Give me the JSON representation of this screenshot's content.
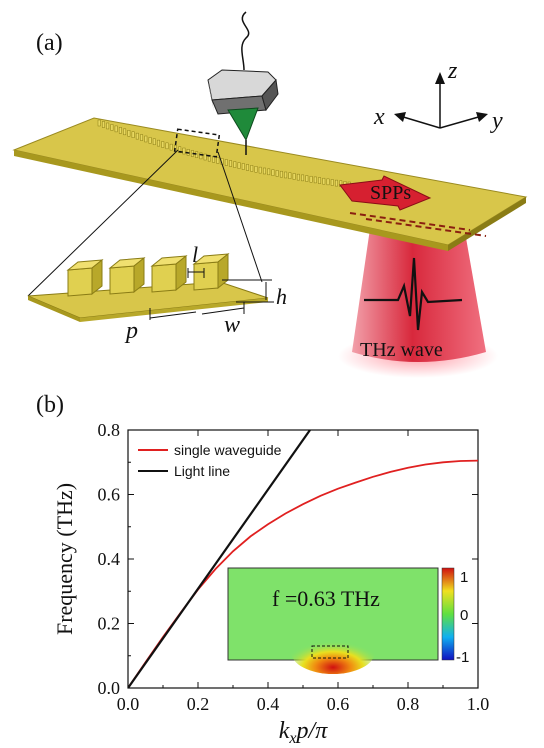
{
  "panel_a": {
    "label": "(a)",
    "axes": {
      "x": "x",
      "y": "y",
      "z": "z"
    },
    "dimensions": {
      "l": "l",
      "h": "h",
      "p": "p",
      "w": "w"
    },
    "spp_label": "SPPs",
    "thz_label": "THz wave",
    "colors": {
      "metal": "#d8c64a",
      "beam": "#d8283c",
      "tip": "#1f8a3a"
    }
  },
  "panel_b": {
    "label": "(b)",
    "inset_text": "f =0.63 THz",
    "colorbar_ticks": [
      "1",
      "0",
      "-1"
    ],
    "inset_background": "#7fe26a"
  },
  "chart_data": {
    "type": "line",
    "xlabel": "kxp/π",
    "ylabel": "Frequency (THz)",
    "xlim": [
      0.0,
      1.0
    ],
    "ylim": [
      0.0,
      0.8
    ],
    "x_ticks": [
      "0.0",
      "0.2",
      "0.4",
      "0.6",
      "0.8",
      "1.0"
    ],
    "y_ticks": [
      "0.0",
      "0.2",
      "0.4",
      "0.6",
      "0.8"
    ],
    "legend_position": "top-left",
    "series": [
      {
        "name": "single waveguide",
        "color": "#e02020",
        "x": [
          0.0,
          0.05,
          0.1,
          0.15,
          0.2,
          0.25,
          0.3,
          0.35,
          0.4,
          0.45,
          0.5,
          0.55,
          0.6,
          0.65,
          0.7,
          0.75,
          0.8,
          0.85,
          0.9,
          0.95,
          1.0
        ],
        "y": [
          0.0,
          0.08,
          0.158,
          0.233,
          0.305,
          0.369,
          0.424,
          0.47,
          0.508,
          0.541,
          0.57,
          0.596,
          0.618,
          0.637,
          0.655,
          0.67,
          0.683,
          0.693,
          0.7,
          0.704,
          0.705
        ]
      },
      {
        "name": "Light line",
        "color": "#111111",
        "x": [
          0.0,
          0.52
        ],
        "y": [
          0.0,
          0.8
        ]
      }
    ]
  }
}
